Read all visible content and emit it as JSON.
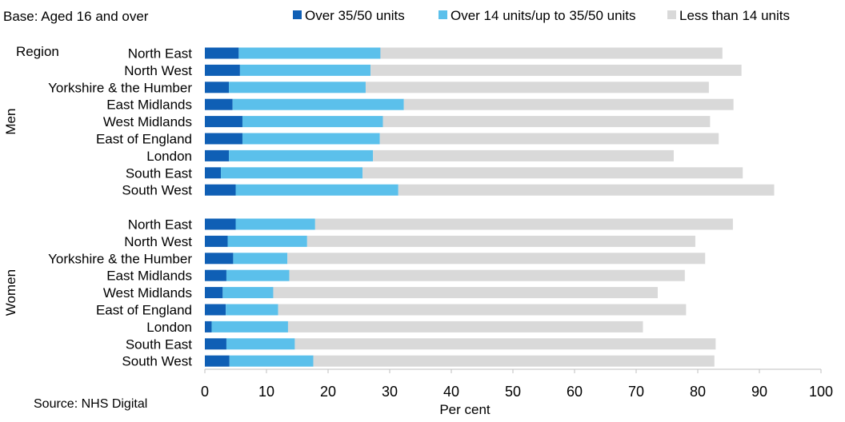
{
  "chart_data": {
    "type": "bar",
    "orientation": "horizontal",
    "stacked": true,
    "base_note": "Base: Aged 16 and over",
    "source": "Source: NHS Digital",
    "group_header": "Region",
    "xlabel": "Per cent",
    "xlim": [
      0,
      100
    ],
    "xticks": [
      0,
      10,
      20,
      30,
      40,
      50,
      60,
      70,
      80,
      90,
      100
    ],
    "grid": false,
    "legend_position": "top",
    "series": [
      {
        "name": "Over 35/50 units",
        "color": "#0f5fb5"
      },
      {
        "name": "Over 14 units/up to 35/50 units",
        "color": "#5bc0eb"
      },
      {
        "name": "Less than 14 units",
        "color": "#d9d9d9"
      }
    ],
    "groups": [
      {
        "name": "Men",
        "rows": [
          {
            "label": "North East",
            "values": [
              5.5,
              23.0,
              55.5
            ]
          },
          {
            "label": "North West",
            "values": [
              5.7,
              21.2,
              60.2
            ]
          },
          {
            "label": "Yorkshire & the Humber",
            "values": [
              3.9,
              22.2,
              55.7
            ]
          },
          {
            "label": "East Midlands",
            "values": [
              4.5,
              27.8,
              53.5
            ]
          },
          {
            "label": "West Midlands",
            "values": [
              6.1,
              22.8,
              53.1
            ]
          },
          {
            "label": "East of England",
            "values": [
              6.1,
              22.3,
              55.0
            ]
          },
          {
            "label": "London",
            "values": [
              3.9,
              23.4,
              48.8
            ]
          },
          {
            "label": "South East",
            "values": [
              2.6,
              23.0,
              61.7
            ]
          },
          {
            "label": "South West",
            "values": [
              5.0,
              26.4,
              61.0
            ]
          }
        ]
      },
      {
        "name": "Women",
        "rows": [
          {
            "label": "North East",
            "values": [
              5.0,
              12.9,
              67.8
            ]
          },
          {
            "label": "North West",
            "values": [
              3.7,
              12.9,
              63.0
            ]
          },
          {
            "label": "Yorkshire & the Humber",
            "values": [
              4.6,
              8.8,
              67.8
            ]
          },
          {
            "label": "East Midlands",
            "values": [
              3.5,
              10.2,
              64.2
            ]
          },
          {
            "label": "West Midlands",
            "values": [
              2.9,
              8.2,
              62.4
            ]
          },
          {
            "label": "East of England",
            "values": [
              3.4,
              8.5,
              66.2
            ]
          },
          {
            "label": "London",
            "values": [
              1.1,
              12.4,
              57.6
            ]
          },
          {
            "label": "South East",
            "values": [
              3.5,
              11.1,
              68.3
            ]
          },
          {
            "label": "South West",
            "values": [
              4.0,
              13.6,
              65.1
            ]
          }
        ]
      }
    ]
  }
}
